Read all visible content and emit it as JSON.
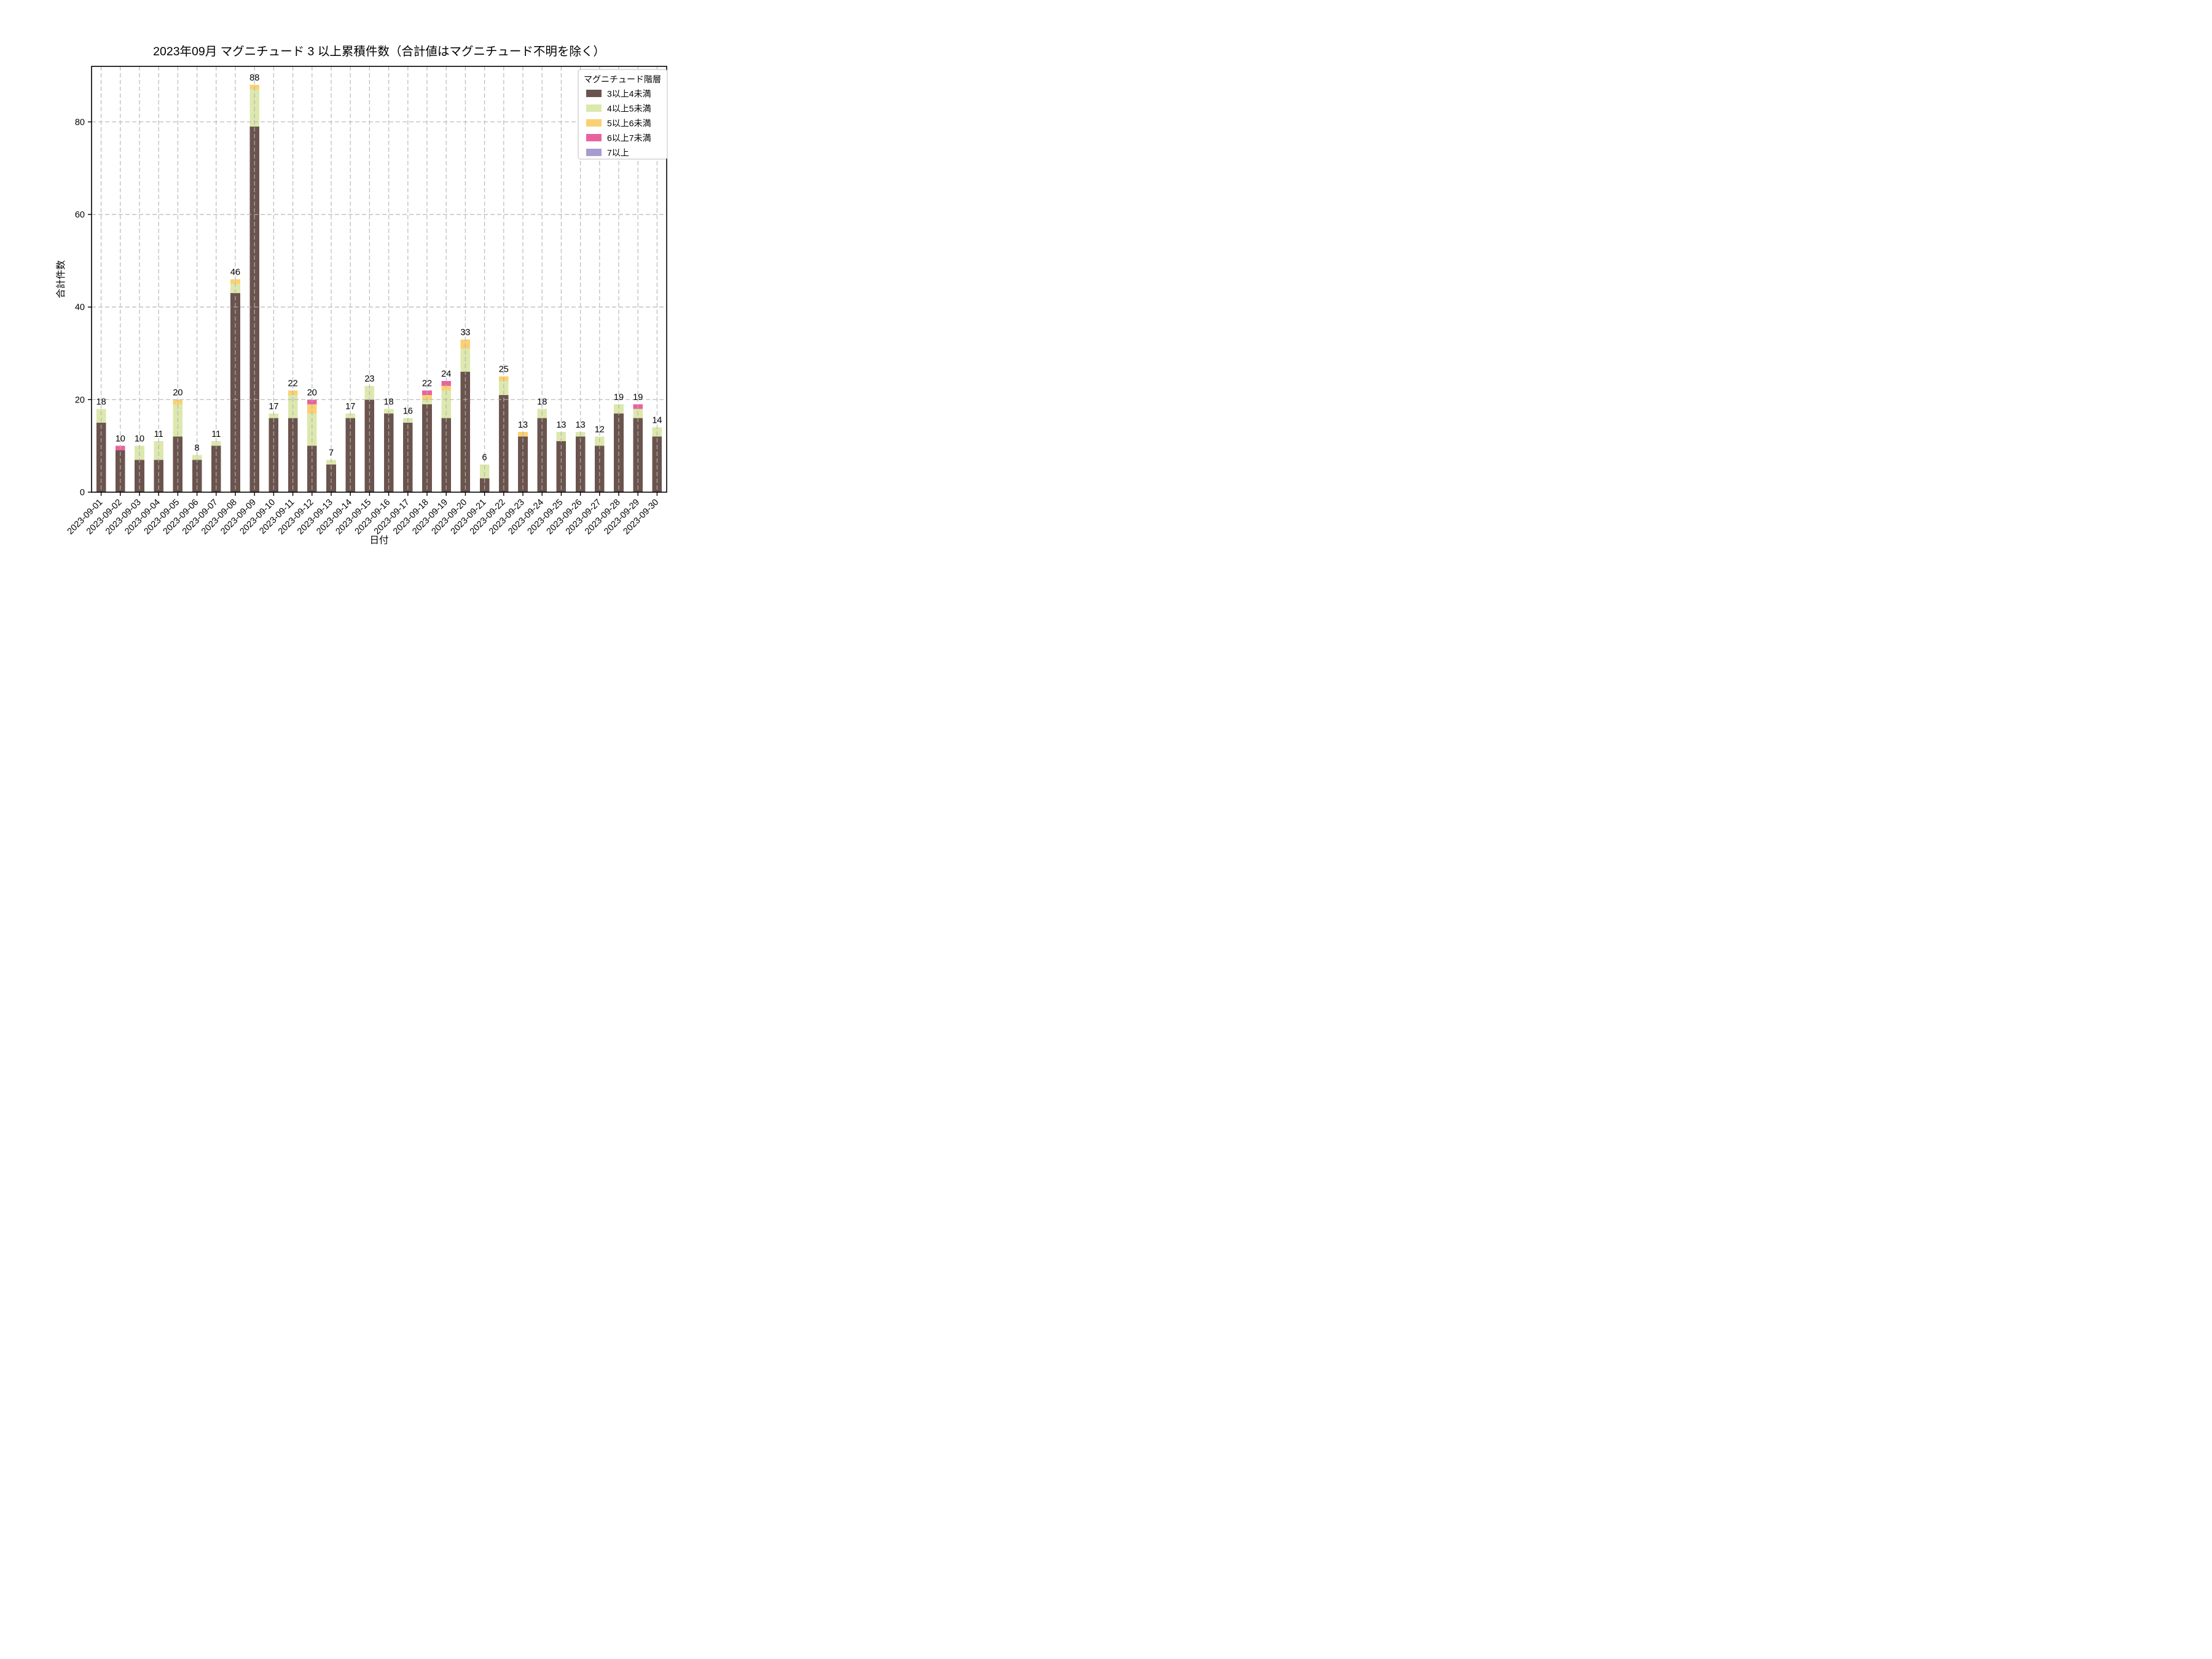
{
  "title": "2023年09月 マグニチュード 3 以上累積件数（合計値はマグニチュード不明を除く）",
  "axes": {
    "x_label": "日付",
    "y_label": "合計件数",
    "y_ticks": [
      0,
      20,
      40,
      60,
      80
    ]
  },
  "legend": {
    "title": "マグニチュード階層"
  },
  "colors": {
    "grid": "#b3b3b3",
    "spine": "#000000",
    "text": "#000000",
    "legend_border": "#cccccc",
    "background": "#ffffff"
  },
  "chart_data": {
    "type": "bar",
    "stacked": true,
    "title": "2023年09月 マグニチュード 3 以上累積件数（合計値はマグニチュード不明を除く）",
    "xlabel": "日付",
    "ylabel": "合計件数",
    "ylim": [
      0,
      92
    ],
    "grid": {
      "style": "dashed",
      "h_lines": [
        20,
        40,
        60,
        80
      ],
      "v_lines": "every-category"
    },
    "legend_position": "upper right",
    "categories": [
      "2023-09-01",
      "2023-09-02",
      "2023-09-03",
      "2023-09-04",
      "2023-09-05",
      "2023-09-06",
      "2023-09-07",
      "2023-09-08",
      "2023-09-09",
      "2023-09-10",
      "2023-09-11",
      "2023-09-12",
      "2023-09-13",
      "2023-09-14",
      "2023-09-15",
      "2023-09-16",
      "2023-09-17",
      "2023-09-18",
      "2023-09-19",
      "2023-09-20",
      "2023-09-21",
      "2023-09-22",
      "2023-09-23",
      "2023-09-24",
      "2023-09-25",
      "2023-09-26",
      "2023-09-27",
      "2023-09-28",
      "2023-09-29",
      "2023-09-30"
    ],
    "series": [
      {
        "name": "3以上4未満",
        "color": "#6b544e",
        "values": [
          15,
          9,
          7,
          7,
          12,
          7,
          10,
          43,
          79,
          16,
          16,
          10,
          6,
          16,
          20,
          17,
          15,
          19,
          16,
          26,
          3,
          21,
          12,
          16,
          11,
          12,
          10,
          17,
          16,
          12
        ]
      },
      {
        "name": "4以上5未満",
        "color": "#dce8ad",
        "values": [
          3,
          0,
          3,
          4,
          7,
          1,
          1,
          2,
          8,
          1,
          5,
          7,
          1,
          1,
          3,
          1,
          1,
          1,
          6,
          5,
          3,
          3,
          0,
          2,
          2,
          1,
          2,
          2,
          2,
          2
        ]
      },
      {
        "name": "5以上6未満",
        "color": "#fad172",
        "values": [
          0,
          0,
          0,
          0,
          1,
          0,
          0,
          1,
          1,
          0,
          1,
          2,
          0,
          0,
          0,
          0,
          0,
          1,
          1,
          2,
          0,
          1,
          1,
          0,
          0,
          0,
          0,
          0,
          0,
          0
        ]
      },
      {
        "name": "6以上7未満",
        "color": "#e8639e",
        "values": [
          0,
          1,
          0,
          0,
          0,
          0,
          0,
          0,
          0,
          0,
          0,
          1,
          0,
          0,
          0,
          0,
          0,
          1,
          1,
          0,
          0,
          0,
          0,
          0,
          0,
          0,
          0,
          0,
          1,
          0
        ]
      },
      {
        "name": "7以上",
        "color": "#a89bd0",
        "values": [
          0,
          0,
          0,
          0,
          0,
          0,
          0,
          0,
          0,
          0,
          0,
          0,
          0,
          0,
          0,
          0,
          0,
          0,
          0,
          0,
          0,
          0,
          0,
          0,
          0,
          0,
          0,
          0,
          0,
          0
        ]
      }
    ],
    "totals": [
      18,
      10,
      10,
      11,
      20,
      8,
      11,
      46,
      88,
      17,
      22,
      20,
      7,
      17,
      23,
      18,
      16,
      22,
      24,
      33,
      6,
      25,
      13,
      18,
      13,
      13,
      12,
      19,
      19,
      14
    ]
  }
}
